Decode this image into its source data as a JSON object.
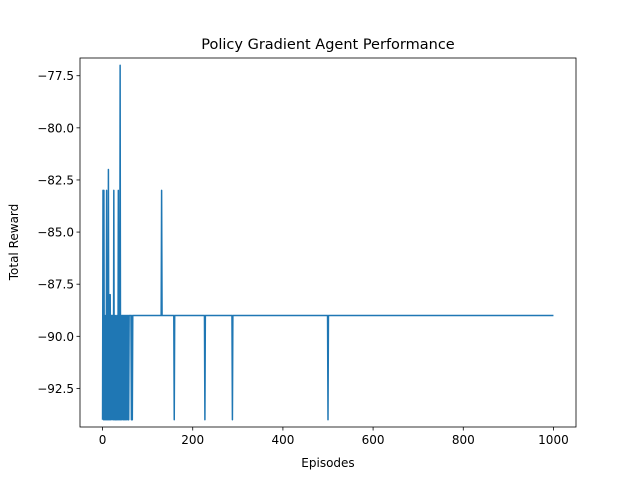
{
  "chart_data": {
    "type": "line",
    "title": "Policy Gradient Agent Performance",
    "xlabel": "Episodes",
    "ylabel": "Total Reward",
    "xlim": [
      -50,
      1050
    ],
    "ylim": [
      -94.35,
      -76.65
    ],
    "xticks": [
      0,
      200,
      400,
      600,
      800,
      1000
    ],
    "yticks": [
      -92.5,
      -90.0,
      -87.5,
      -85.0,
      -82.5,
      -80.0,
      -77.5
    ],
    "ytick_labels": [
      "−92.5",
      "−90.0",
      "−87.5",
      "−85.0",
      "−82.5",
      "−80.0",
      "−77.5"
    ],
    "grid": false,
    "legend": "none",
    "series": [
      {
        "color": "#1f77b4",
        "x": [
          0,
          1,
          2,
          3,
          4,
          5,
          6,
          7,
          8,
          9,
          10,
          11,
          12,
          13,
          14,
          15,
          16,
          17,
          18,
          19,
          20,
          21,
          22,
          23,
          24,
          25,
          26,
          27,
          28,
          29,
          30,
          31,
          32,
          33,
          34,
          35,
          36,
          37,
          38,
          39,
          40,
          41,
          42,
          43,
          44,
          45,
          46,
          47,
          48,
          49,
          50,
          51,
          52,
          53,
          54,
          55,
          56,
          57,
          58,
          59,
          60,
          61,
          62,
          63,
          64,
          65,
          66,
          67,
          68,
          69,
          70,
          71,
          130,
          131,
          132,
          133,
          158,
          159,
          160,
          161,
          226,
          227,
          228,
          229,
          287,
          288,
          289,
          290,
          499,
          500,
          501,
          502,
          1000
        ],
        "y": [
          -94,
          -83,
          -94,
          -83,
          -94,
          -89,
          -94,
          -89,
          -94,
          -83,
          -94,
          -89,
          -94,
          -82,
          -94,
          -88,
          -94,
          -88,
          -94,
          -89,
          -89,
          -94,
          -89,
          -89,
          -94,
          -83,
          -94,
          -89,
          -94,
          -94,
          -89,
          -94,
          -94,
          -89,
          -94,
          -83,
          -94,
          -89,
          -94,
          -77,
          -94,
          -89,
          -94,
          -89,
          -89,
          -94,
          -89,
          -94,
          -89,
          -94,
          -89,
          -94,
          -89,
          -94,
          -89,
          -89,
          -94,
          -89,
          -94,
          -89,
          -89,
          -89,
          -89,
          -89,
          -94,
          -89,
          -94,
          -89,
          -89,
          -89,
          -89,
          -89,
          -89,
          -83,
          -89,
          -89,
          -89,
          -94,
          -89,
          -89,
          -89,
          -94,
          -89,
          -89,
          -89,
          -94,
          -89,
          -89,
          -89,
          -94,
          -89,
          -89,
          -89
        ]
      }
    ]
  }
}
